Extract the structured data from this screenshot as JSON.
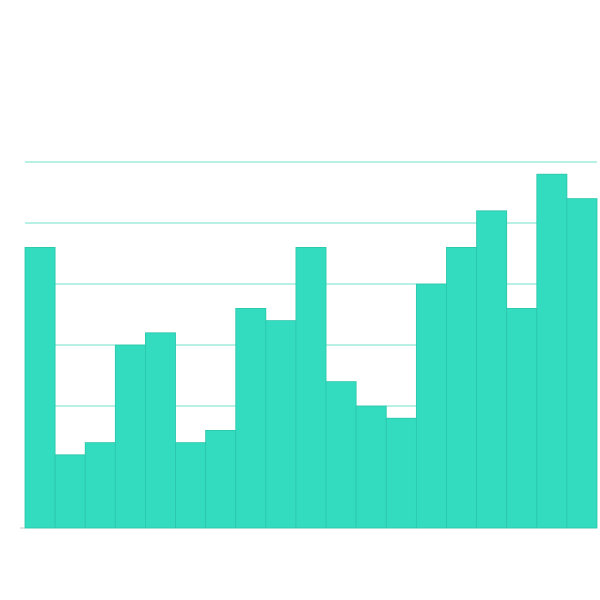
{
  "chart_data": {
    "type": "bar",
    "values": [
      4.6,
      1.2,
      1.4,
      3,
      3.2,
      1.4,
      1.6,
      3.6,
      3.4,
      4.6,
      2.4,
      2,
      1.8,
      4,
      4.6,
      5.2,
      3.6,
      5.8,
      5.4
    ],
    "color": "#33dbbf",
    "ylim": [
      0,
      6
    ],
    "yticks": [
      0,
      1,
      2,
      3,
      4,
      5,
      6
    ],
    "grid": true
  }
}
